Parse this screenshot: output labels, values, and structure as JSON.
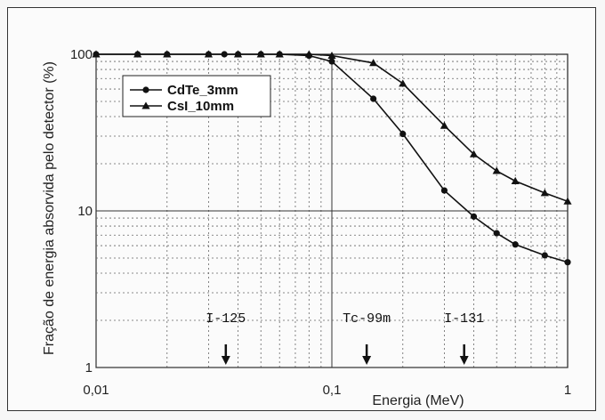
{
  "chart_data": {
    "type": "line",
    "xlabel": "Energia (MeV)",
    "ylabel": "Fração de energia absorvida pelo detector (%)",
    "xscale": "log",
    "yscale": "log",
    "xlim": [
      0.01,
      1
    ],
    "ylim": [
      1,
      100
    ],
    "grid": true,
    "legend_position": "top-left",
    "x_tick_labels": [
      "0,01",
      "0,1",
      "1"
    ],
    "y_tick_labels": [
      "1",
      "10",
      "100"
    ],
    "series": [
      {
        "name": "CdTe_3mm",
        "marker": "circle",
        "x": [
          0.01,
          0.015,
          0.02,
          0.03,
          0.035,
          0.04,
          0.05,
          0.06,
          0.08,
          0.1,
          0.15,
          0.2,
          0.3,
          0.4,
          0.5,
          0.6,
          0.8,
          1.0
        ],
        "y": [
          100,
          100,
          100,
          100,
          100,
          100,
          100,
          100,
          98,
          90,
          52,
          31,
          13.5,
          9.2,
          7.2,
          6.1,
          5.2,
          4.7
        ]
      },
      {
        "name": "CsI_10mm",
        "marker": "triangle",
        "x": [
          0.01,
          0.015,
          0.02,
          0.03,
          0.04,
          0.05,
          0.06,
          0.08,
          0.1,
          0.15,
          0.2,
          0.3,
          0.4,
          0.5,
          0.6,
          0.8,
          1.0
        ],
        "y": [
          100,
          100,
          100,
          100,
          100,
          100,
          100,
          100,
          98,
          88,
          65,
          35,
          23,
          18,
          15.5,
          13,
          11.5
        ]
      }
    ],
    "annotations": [
      {
        "text": "I-125",
        "x": 0.0355
      },
      {
        "text": "Tc-99m",
        "x": 0.1405
      },
      {
        "text": "I-131",
        "x": 0.364
      }
    ]
  }
}
